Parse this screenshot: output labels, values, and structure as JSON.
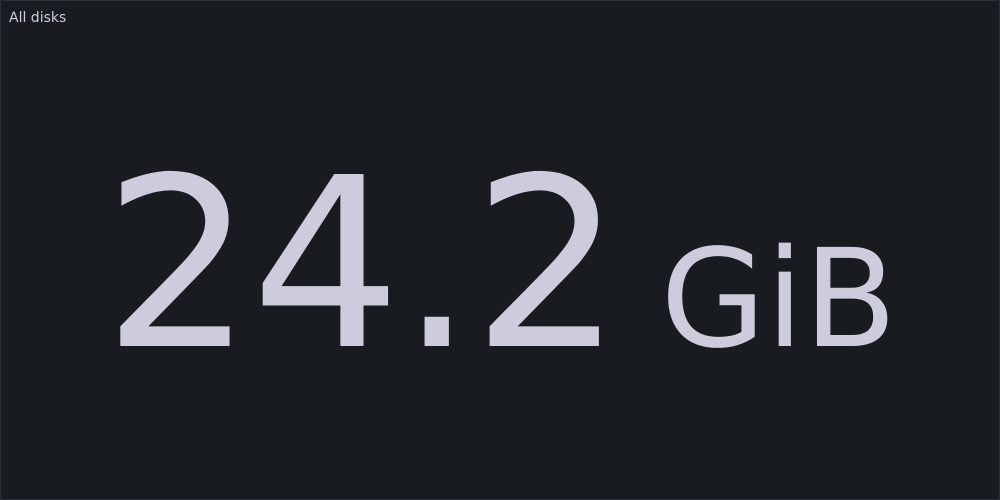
{
  "panel": {
    "title": "All disks",
    "value": "24.2",
    "unit": "GiB",
    "text_color": "#ccccdc",
    "background_color": "#181b1f"
  }
}
